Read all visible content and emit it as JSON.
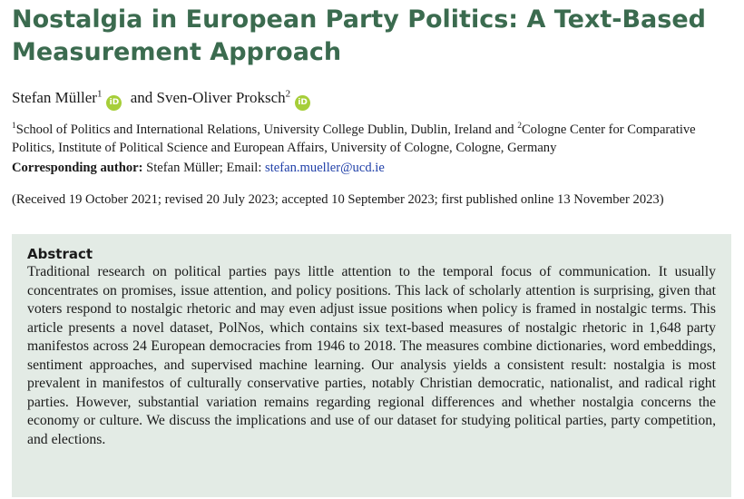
{
  "paper": {
    "title": "Nostalgia in European Party Politics: A Text-Based Measurement Approach",
    "authors": [
      {
        "name": "Stefan Müller",
        "sup": "1",
        "orcid_icon": "orcid-icon"
      },
      {
        "name": "Sven-Oliver Proksch",
        "sup": "2",
        "orcid_icon": "orcid-icon"
      }
    ],
    "author_joiner": "and",
    "orcid_badge_text": "iD",
    "affiliation": {
      "sup1": "1",
      "part1": "School of Politics and International Relations, University College Dublin, Dublin, Ireland and ",
      "sup2": "2",
      "part2": "Cologne Center for Comparative Politics, Institute of Political Science and European Affairs, University of Cologne, Cologne, Germany"
    },
    "corresponding": {
      "label": "Corresponding author:",
      "text": " Stefan Müller; Email: ",
      "email": "stefan.mueller@ucd.ie"
    },
    "dates": "(Received 19 October 2021; revised 20 July 2023; accepted 10 September 2023; first published online 13 November 2023)",
    "abstract": {
      "heading": "Abstract",
      "text": "Traditional research on political parties pays little attention to the temporal focus of communication. It usually concentrates on promises, issue attention, and policy positions. This lack of scholarly attention is surprising, given that voters respond to nostalgic rhetoric and may even adjust issue positions when policy is framed in nostalgic terms. This article presents a novel dataset, PolNos, which contains six text-based measures of nostalgic rhetoric in 1,648 party manifestos across 24 European democracies from 1946 to 2018. The measures combine dictionaries, word embeddings, sentiment approaches, and supervised machine learning. Our analysis yields a consistent result: nostalgia is most prevalent in manifestos of culturally conservative parties, notably Christian democratic, nationalist, and radical right parties. However, substantial variation remains regarding regional differences and whether nostalgia concerns the economy or culture. We discuss the implications and use of our dataset for studying political parties, party competition, and elections."
    },
    "colors": {
      "title": "#3b6b4f",
      "abstract_bg": "#e3ebe5",
      "email": "#1f3fa8",
      "orcid": "#a6ce39"
    }
  }
}
